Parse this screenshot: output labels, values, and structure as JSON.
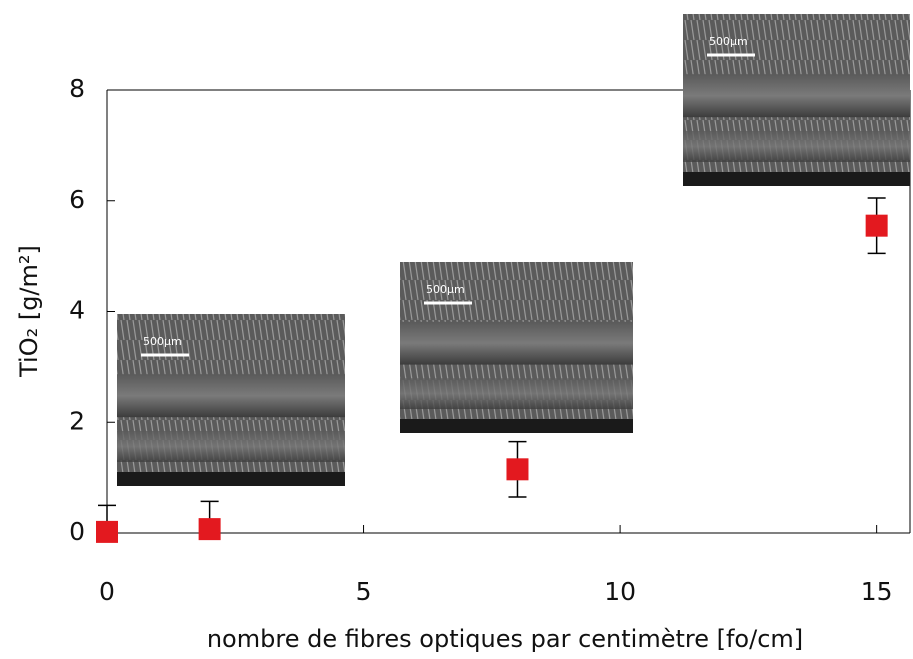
{
  "chart_data": {
    "type": "scatter",
    "xlabel": "nombre de fibres optiques par centimètre [fo/cm]",
    "ylabel": "TiO₂ [g/m²]",
    "x": [
      0,
      2,
      8,
      15
    ],
    "values": [
      0.02,
      0.07,
      1.15,
      5.55
    ],
    "errors": [
      0.48,
      0.5,
      0.5,
      0.5
    ],
    "color": "#e3191f",
    "xlim": [
      0,
      15.65
    ],
    "ylim": [
      0,
      8
    ],
    "xticks": [
      0,
      5,
      10,
      15
    ],
    "yticks": [
      0,
      2,
      4,
      6,
      8
    ],
    "insets": [
      {
        "scale_label": "500µm"
      },
      {
        "scale_label": "500µm"
      },
      {
        "scale_label": "500µm"
      }
    ]
  }
}
